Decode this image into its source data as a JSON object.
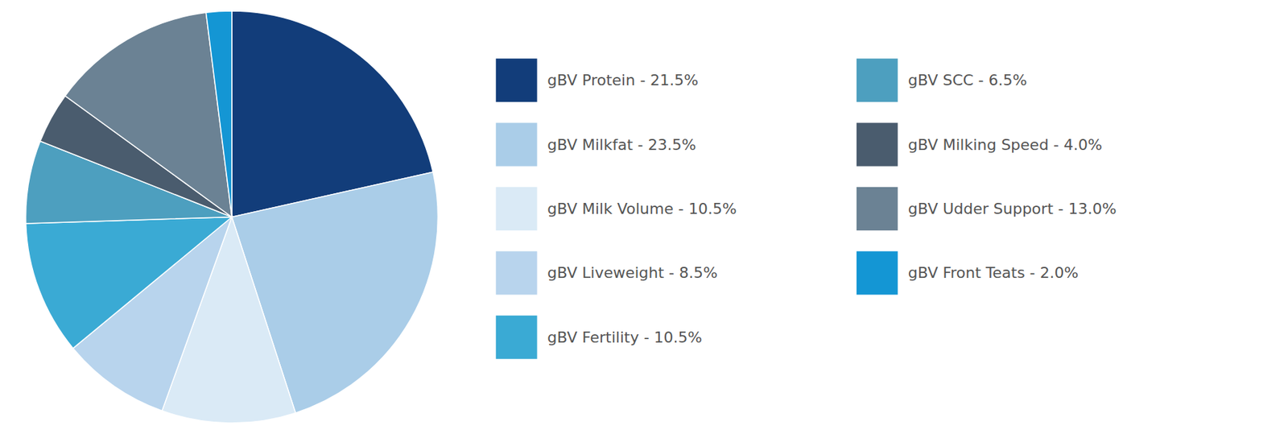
{
  "chart_data": {
    "type": "pie",
    "categories": [
      "gBV Protein - 21.5%",
      "gBV Milkfat - 23.5%",
      "gBV Milk Volume - 10.5%",
      "gBV Liveweight - 8.5%",
      "gBV Fertility - 10.5%",
      "gBV SCC - 6.5%",
      "gBV Milking Speed - 4.0%",
      "gBV Udder Support - 13.0%",
      "gBV Front Teats - 2.0%"
    ],
    "values": [
      21.5,
      23.5,
      10.5,
      8.5,
      10.5,
      6.5,
      4.0,
      13.0,
      2.0
    ],
    "colors": [
      "#123d7a",
      "#aacde8",
      "#daeaf6",
      "#b8d4ed",
      "#3aaad4",
      "#4d9fbf",
      "#4a5c6e",
      "#6b8294",
      "#1496d4"
    ],
    "legend": "right"
  }
}
